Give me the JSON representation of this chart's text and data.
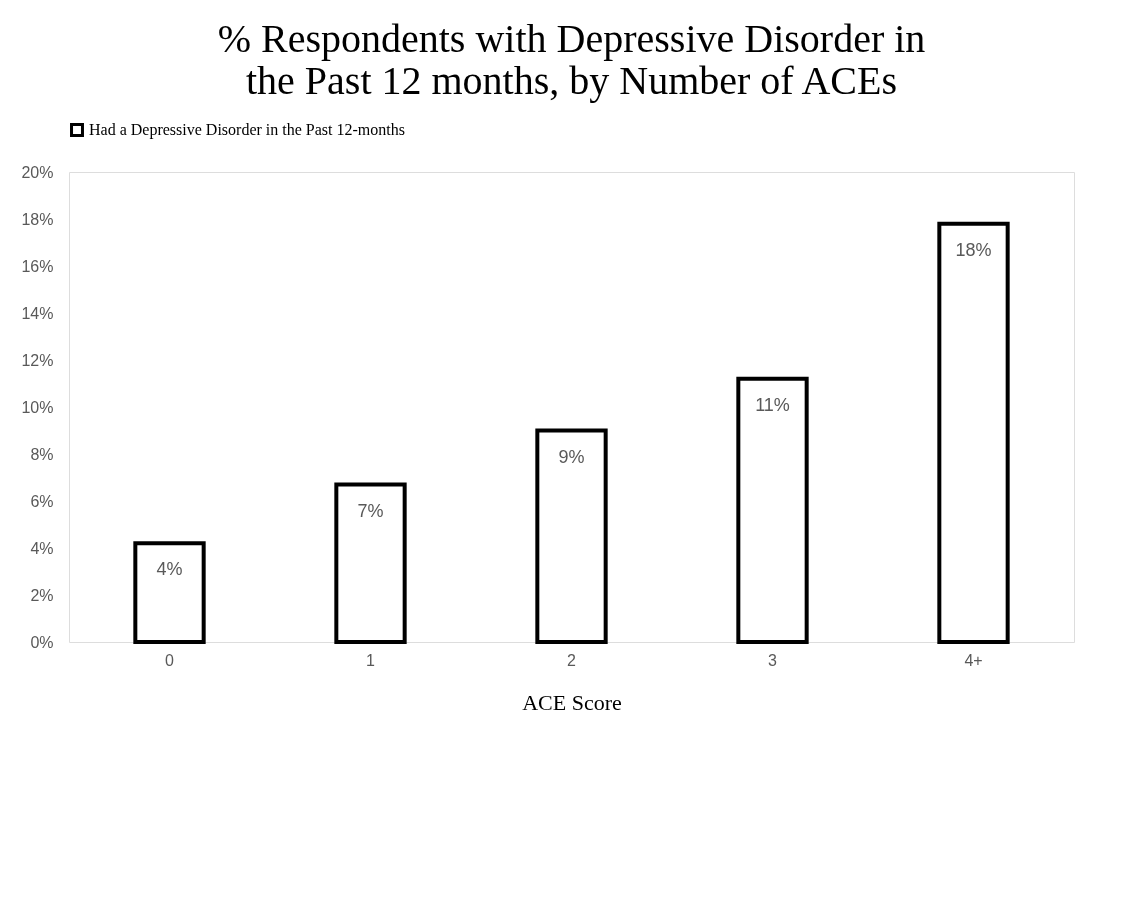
{
  "chart_data": {
    "type": "bar",
    "title": "% Respondents with Depressive Disorder in the Past 12 months, by Number of ACEs",
    "xlabel": "ACE Score",
    "categories": [
      "0",
      "1",
      "2",
      "3",
      "4+"
    ],
    "series": [
      {
        "name": "Had a Depressive Disorder in the Past 12-months",
        "color": "#ffffff",
        "values": [
          4.2,
          6.7,
          9.0,
          11.2,
          17.8
        ],
        "value_labels": [
          "4%",
          "7%",
          "9%",
          "11%",
          "18%"
        ]
      }
    ],
    "ylim": [
      0,
      20
    ],
    "yticks": [
      {
        "value": 0,
        "label": "0%"
      },
      {
        "value": 2,
        "label": "2%"
      },
      {
        "value": 4,
        "label": "4%"
      },
      {
        "value": 6,
        "label": "6%"
      },
      {
        "value": 8,
        "label": "8%"
      },
      {
        "value": 10,
        "label": "10%"
      },
      {
        "value": 12,
        "label": "12%"
      },
      {
        "value": 14,
        "label": "14%"
      },
      {
        "value": 16,
        "label": "16%"
      },
      {
        "value": 18,
        "label": "18%"
      },
      {
        "value": 20,
        "label": "20%"
      }
    ],
    "grid": false,
    "legend": "top"
  }
}
